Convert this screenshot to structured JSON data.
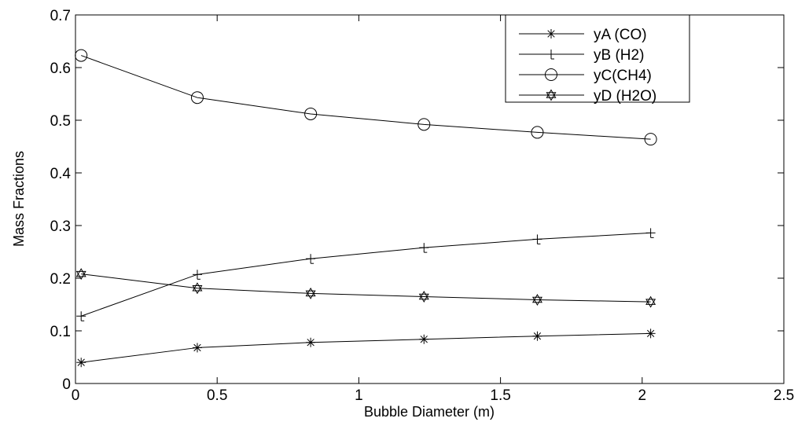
{
  "chart_data": {
    "type": "line",
    "title": "",
    "xlabel": "Bubble Diameter (m)",
    "ylabel": "Mass Fractions",
    "xlim": [
      0,
      2.5
    ],
    "ylim": [
      0,
      0.7
    ],
    "xticks": [
      "0",
      "0.5",
      "1",
      "1.5",
      "2",
      "2.5"
    ],
    "yticks": [
      "0",
      "0.1",
      "0.2",
      "0.3",
      "0.4",
      "0.5",
      "0.6",
      "0.7"
    ],
    "grid": false,
    "legend_position": "top-right",
    "x": [
      0.02,
      0.43,
      0.83,
      1.23,
      1.63,
      2.03
    ],
    "series": [
      {
        "name": "yA (CO)",
        "marker": "asterisk",
        "values": [
          0.04,
          0.068,
          0.078,
          0.084,
          0.09,
          0.095
        ]
      },
      {
        "name": "yB (H2)",
        "marker": "plus-serif",
        "values": [
          0.128,
          0.207,
          0.237,
          0.258,
          0.274,
          0.286
        ]
      },
      {
        "name": "yC(CH4)",
        "marker": "circle",
        "values": [
          0.623,
          0.543,
          0.512,
          0.492,
          0.477,
          0.464
        ]
      },
      {
        "name": "yD (H2O)",
        "marker": "star",
        "values": [
          0.208,
          0.181,
          0.171,
          0.165,
          0.159,
          0.155
        ]
      }
    ]
  }
}
